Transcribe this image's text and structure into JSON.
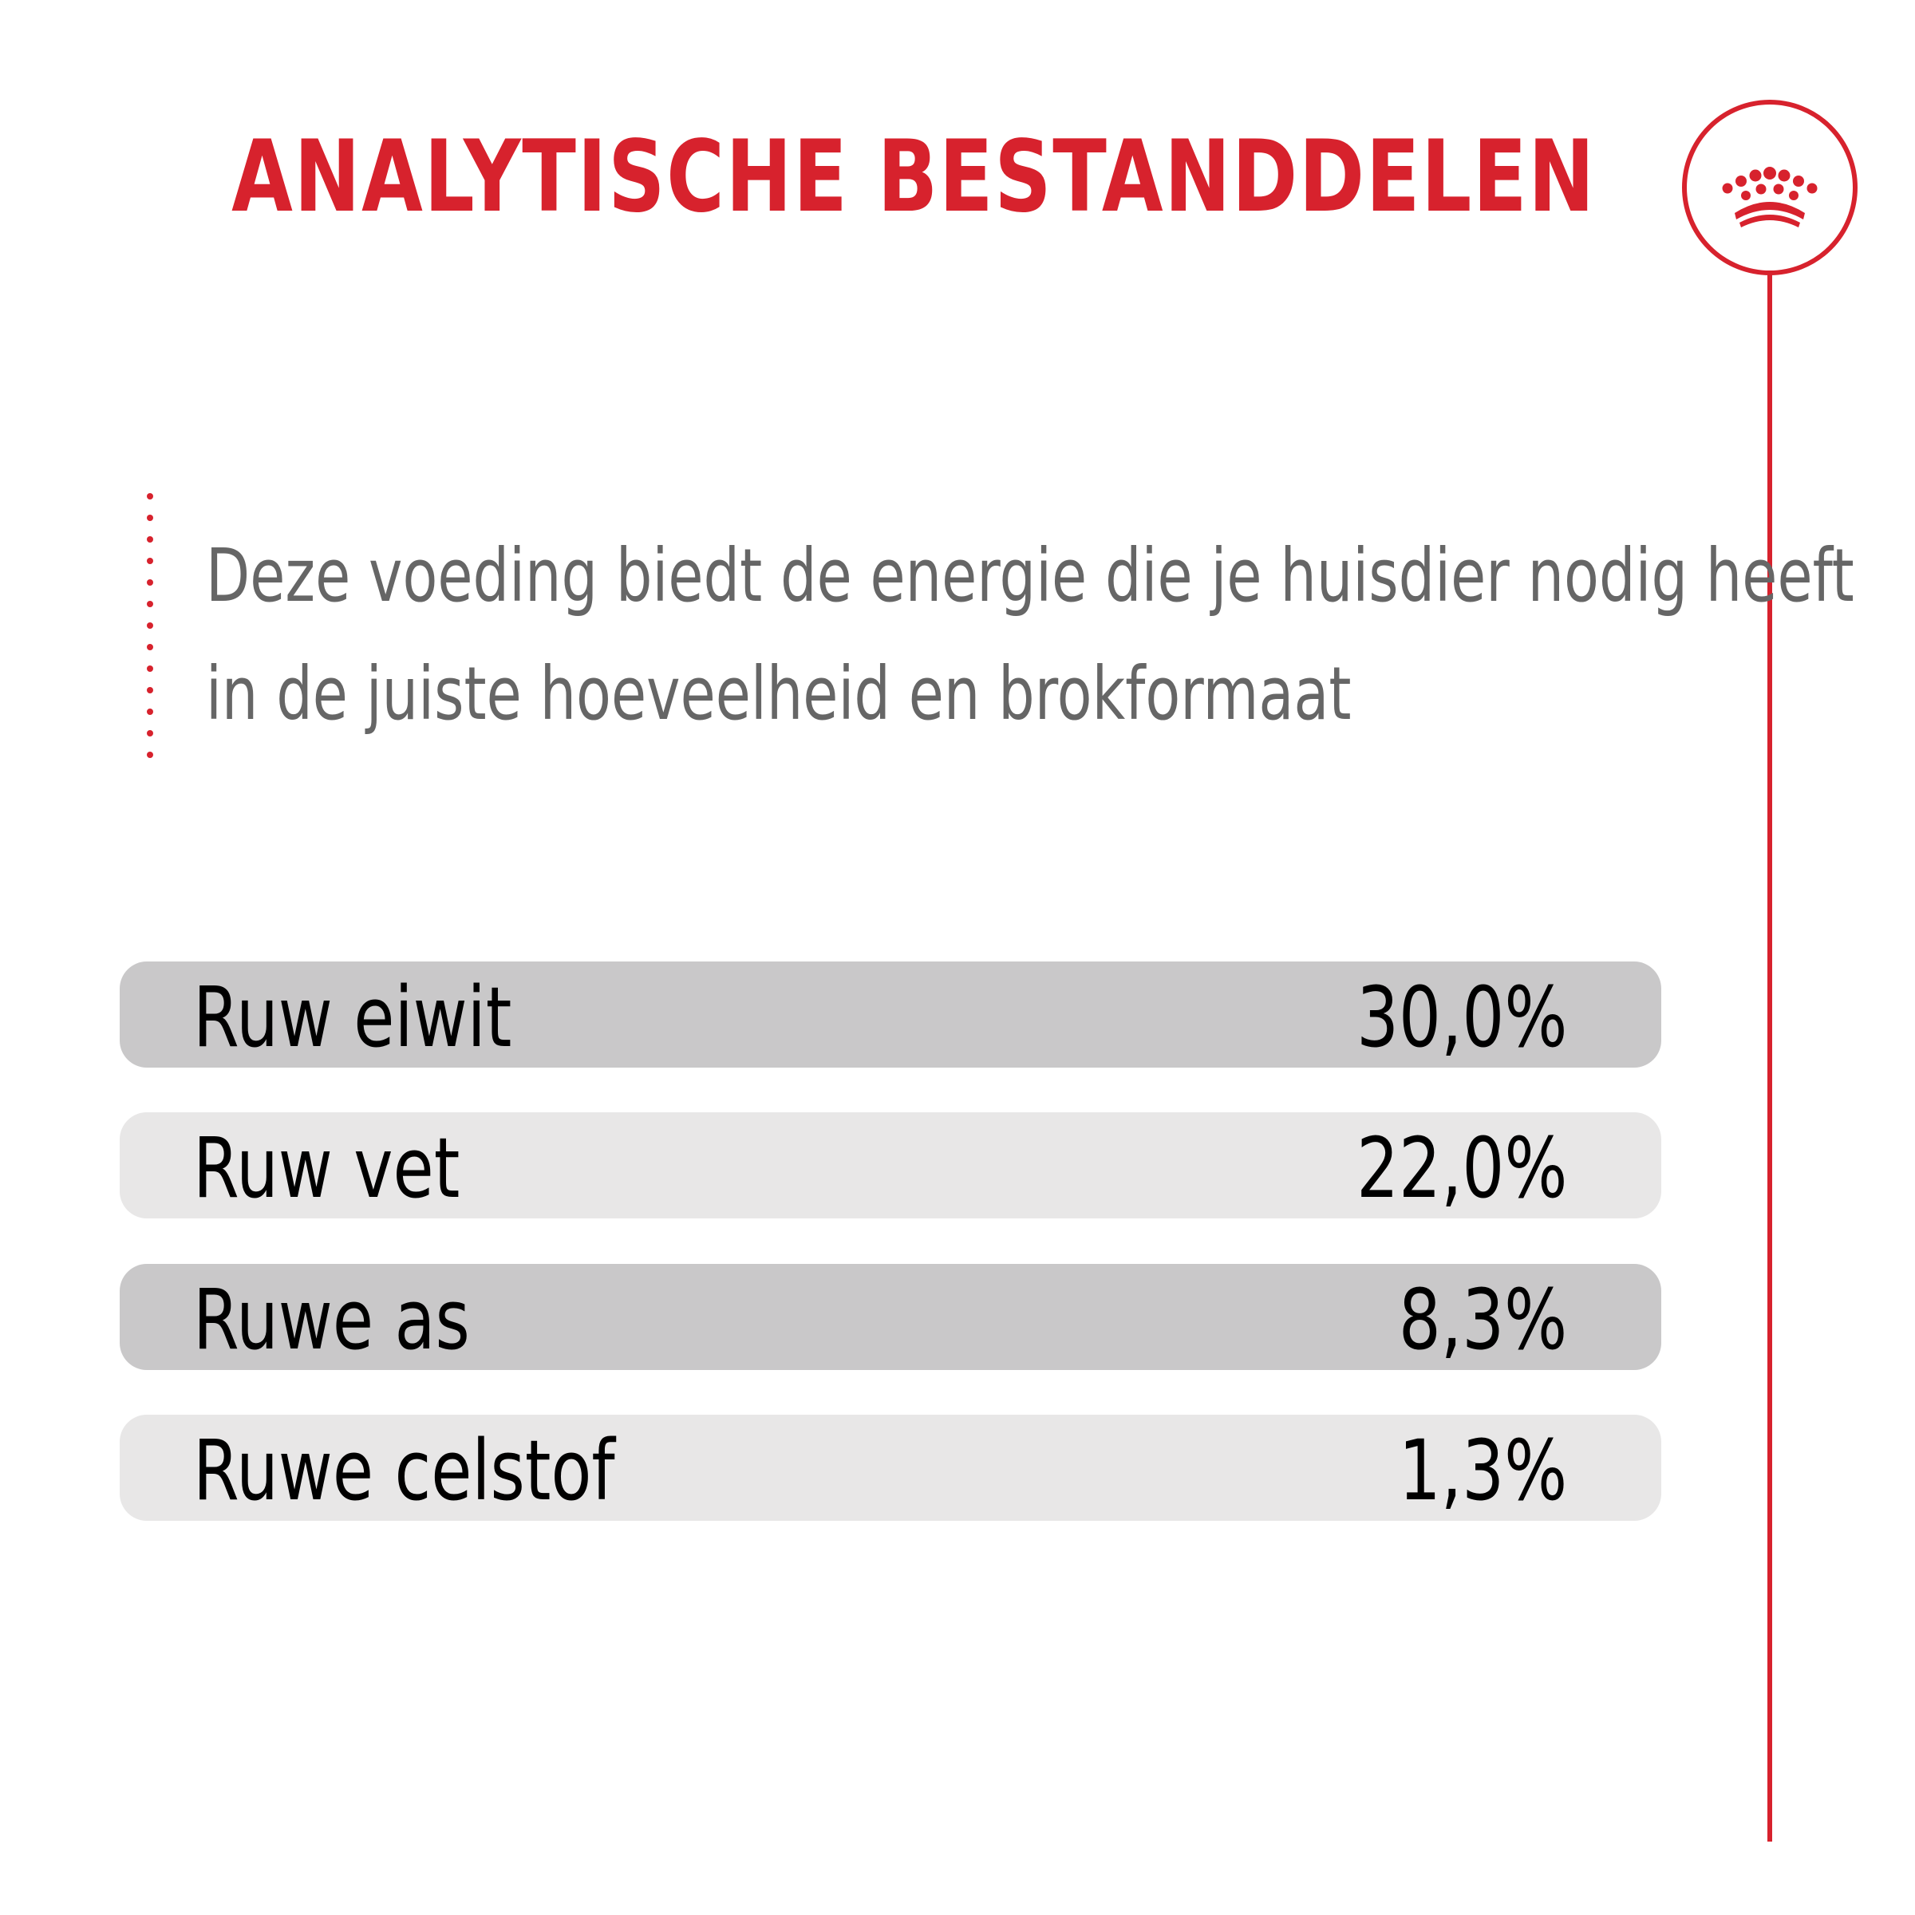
{
  "title": "ANALYTISCHE BESTANDDELEN",
  "intro": {
    "line1": "Deze voeding biedt de energie die je huisdier nodig heeft",
    "line2": "in de juiste hoeveelheid en brokformaat"
  },
  "nutrients": [
    {
      "label": "Ruw eiwit",
      "value": "30,0%"
    },
    {
      "label": "Ruw vet",
      "value": "22,0%"
    },
    {
      "label": "Ruwe as",
      "value": "8,3%"
    },
    {
      "label": "Ruwe celstof",
      "value": "1,3%"
    }
  ],
  "colors": {
    "brand_red": "#d7222d",
    "row_dark": "#c9c8c9",
    "row_light": "#e8e7e7",
    "intro_text": "#666666"
  },
  "icons": {
    "logo": "crown-icon"
  }
}
